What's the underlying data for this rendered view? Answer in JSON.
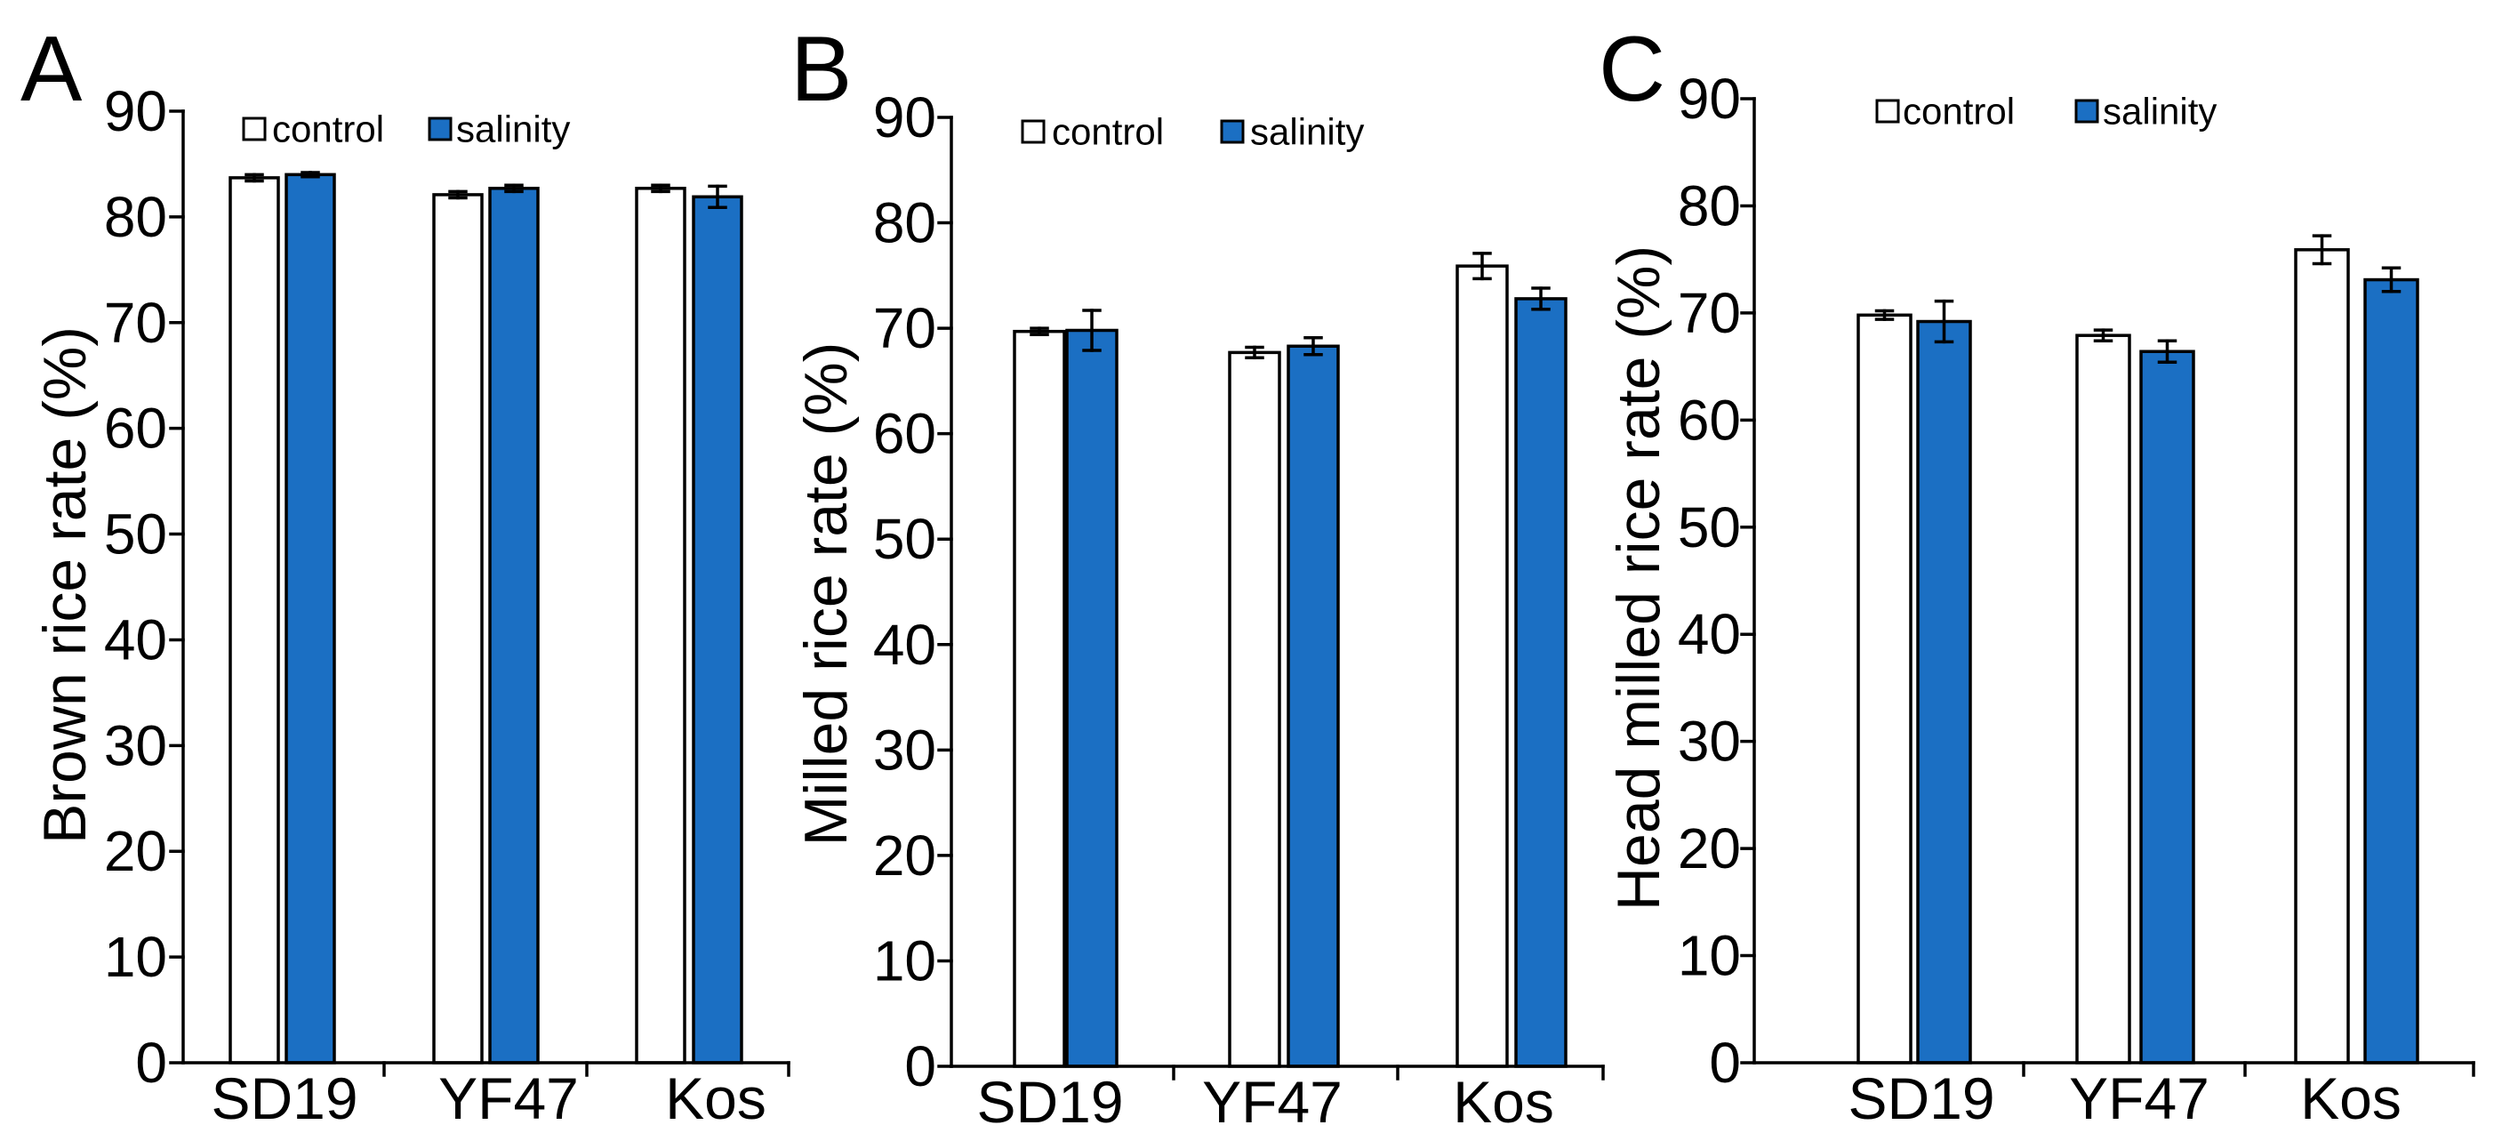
{
  "chart_data": [
    {
      "type": "bar",
      "panel_label": "A",
      "ylabel": "Brown rice rate (%)",
      "categories": [
        "SD19",
        "YF47",
        "Kos"
      ],
      "series": [
        {
          "name": "control",
          "color": "#ffffff",
          "values": [
            83.7,
            82.1,
            82.7
          ],
          "errors": [
            0.3,
            0.3,
            0.3
          ]
        },
        {
          "name": "salinity",
          "color": "#1b6fc3",
          "values": [
            84.0,
            82.7,
            81.9
          ],
          "errors": [
            0.2,
            0.3,
            1.0
          ]
        }
      ],
      "ylim": [
        0,
        90
      ],
      "yticks": [
        0,
        10,
        20,
        30,
        40,
        50,
        60,
        70,
        80,
        90
      ],
      "grid": false
    },
    {
      "type": "bar",
      "panel_label": "B",
      "ylabel": "Milled rice rate (%)",
      "categories": [
        "SD19",
        "YF47",
        "Kos"
      ],
      "series": [
        {
          "name": "control",
          "color": "#ffffff",
          "values": [
            69.7,
            67.7,
            75.9
          ],
          "errors": [
            0.3,
            0.5,
            1.2
          ]
        },
        {
          "name": "salinity",
          "color": "#1b6fc3",
          "values": [
            69.8,
            68.3,
            72.8
          ],
          "errors": [
            1.9,
            0.8,
            1.0
          ]
        }
      ],
      "ylim": [
        0,
        90
      ],
      "yticks": [
        0,
        10,
        20,
        30,
        40,
        50,
        60,
        70,
        80,
        90
      ],
      "grid": false
    },
    {
      "type": "bar",
      "panel_label": "C",
      "ylabel": "Head milled rice rate (%)",
      "categories": [
        "SD19",
        "YF47",
        "Kos"
      ],
      "series": [
        {
          "name": "control",
          "color": "#ffffff",
          "values": [
            69.8,
            67.9,
            75.9
          ],
          "errors": [
            0.4,
            0.5,
            1.3
          ]
        },
        {
          "name": "salinity",
          "color": "#1b6fc3",
          "values": [
            69.2,
            66.4,
            73.1
          ],
          "errors": [
            1.9,
            1.0,
            1.1
          ]
        }
      ],
      "ylim": [
        0,
        90
      ],
      "yticks": [
        0,
        10,
        20,
        30,
        40,
        50,
        60,
        70,
        80,
        90
      ],
      "grid": false
    }
  ]
}
